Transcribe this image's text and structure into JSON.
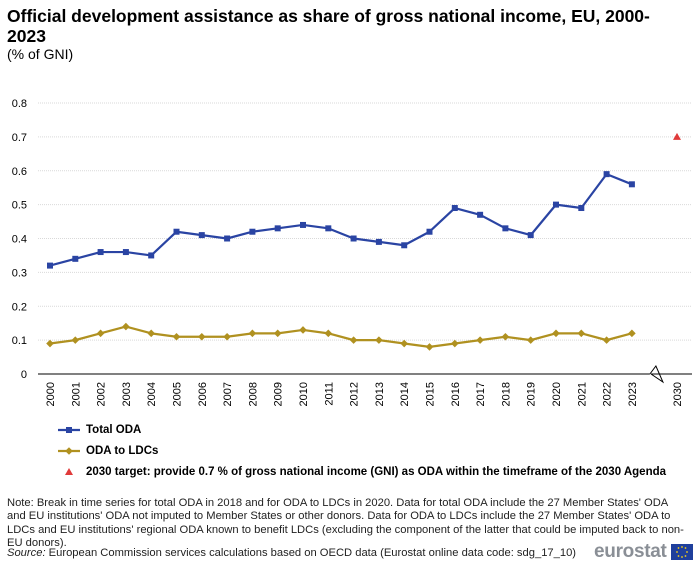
{
  "title": "Official development assistance as share of gross national income, EU, 2000-2023",
  "subtitle": "(% of GNI)",
  "chart_data": {
    "type": "line",
    "title": "Official development assistance as share of gross national income, EU, 2000-2023",
    "subtitle": "(% of GNI)",
    "xlabel": "",
    "ylabel": "",
    "ylim": [
      0,
      0.8
    ],
    "yticks": [
      "0",
      "0.1",
      "0.2",
      "0.3",
      "0.4",
      "0.5",
      "0.6",
      "0.7",
      "0.8"
    ],
    "categories": [
      "2000",
      "2001",
      "2002",
      "2003",
      "2004",
      "2005",
      "2006",
      "2007",
      "2008",
      "2009",
      "2010",
      "2011",
      "2012",
      "2013",
      "2014",
      "2015",
      "2016",
      "2017",
      "2018",
      "2019",
      "2020",
      "2021",
      "2022",
      "2023",
      "2030"
    ],
    "axis_break_between": [
      "2023",
      "2030"
    ],
    "grid": "horizontal",
    "legend_position": "bottom-left",
    "series": [
      {
        "name": "Total ODA",
        "color": "#2a44a3",
        "marker": "square",
        "values": [
          0.32,
          0.34,
          0.36,
          0.36,
          0.35,
          0.42,
          0.41,
          0.4,
          0.42,
          0.43,
          0.44,
          0.43,
          0.4,
          0.39,
          0.38,
          0.42,
          0.49,
          0.47,
          0.43,
          0.41,
          0.5,
          0.49,
          0.59,
          0.56,
          null
        ]
      },
      {
        "name": "ODA to LDCs",
        "color": "#b09120",
        "marker": "diamond",
        "values": [
          0.09,
          0.1,
          0.12,
          0.14,
          0.12,
          0.11,
          0.11,
          0.11,
          0.12,
          0.12,
          0.13,
          0.12,
          0.1,
          0.1,
          0.09,
          0.08,
          0.09,
          0.1,
          0.11,
          0.1,
          0.12,
          0.12,
          0.1,
          0.12,
          null
        ]
      },
      {
        "name": "2030 target: provide 0.7 % of gross national income (GNI) as ODA within the timeframe of the 2030 Agenda",
        "color": "#e03a3a",
        "marker": "triangle",
        "values": [
          null,
          null,
          null,
          null,
          null,
          null,
          null,
          null,
          null,
          null,
          null,
          null,
          null,
          null,
          null,
          null,
          null,
          null,
          null,
          null,
          null,
          null,
          null,
          null,
          0.7
        ]
      }
    ]
  },
  "note": "Note: Break in time series for total ODA in 2018 and for ODA to LDCs in 2020. Data for total ODA include the 27 Member States' ODA and EU institutions' ODA not imputed to Member States or other donors. Data for ODA to LDCs include the 27 Member States' ODA to LDCs and EU institutions' regional ODA known to benefit LDCs (excluding the component of the latter that could be imputed back to non-EU donors).",
  "source": {
    "label": "Source:",
    "text": " European Commission services calculations based on OECD data (Eurostat online data code: sdg_17_10)"
  },
  "logo": {
    "text": "eurostat"
  }
}
